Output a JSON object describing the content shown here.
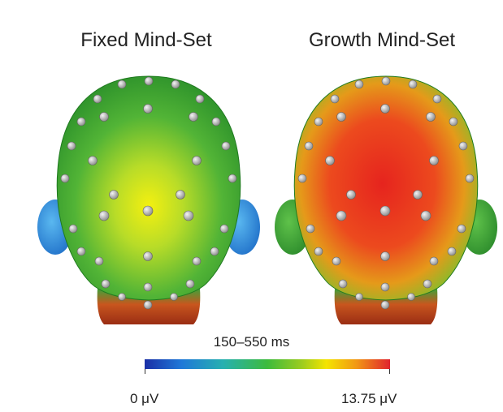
{
  "titles": {
    "left": "Fixed Mind-Set",
    "right": "Growth Mind-Set"
  },
  "colorbar": {
    "time_window": "150–550 ms",
    "min_label": "0 μV",
    "max_label": "13.75 μV"
  },
  "colors": {
    "fixed_center": "#f2ef10",
    "fixed_edge": "#2f9a2f",
    "growth_center": "#e8301e",
    "growth_edge": "#3a9a34",
    "ear_fixed": "#2e8fe0",
    "ear_growth": "#3aa83a",
    "neck_base": "#b8431e"
  }
}
